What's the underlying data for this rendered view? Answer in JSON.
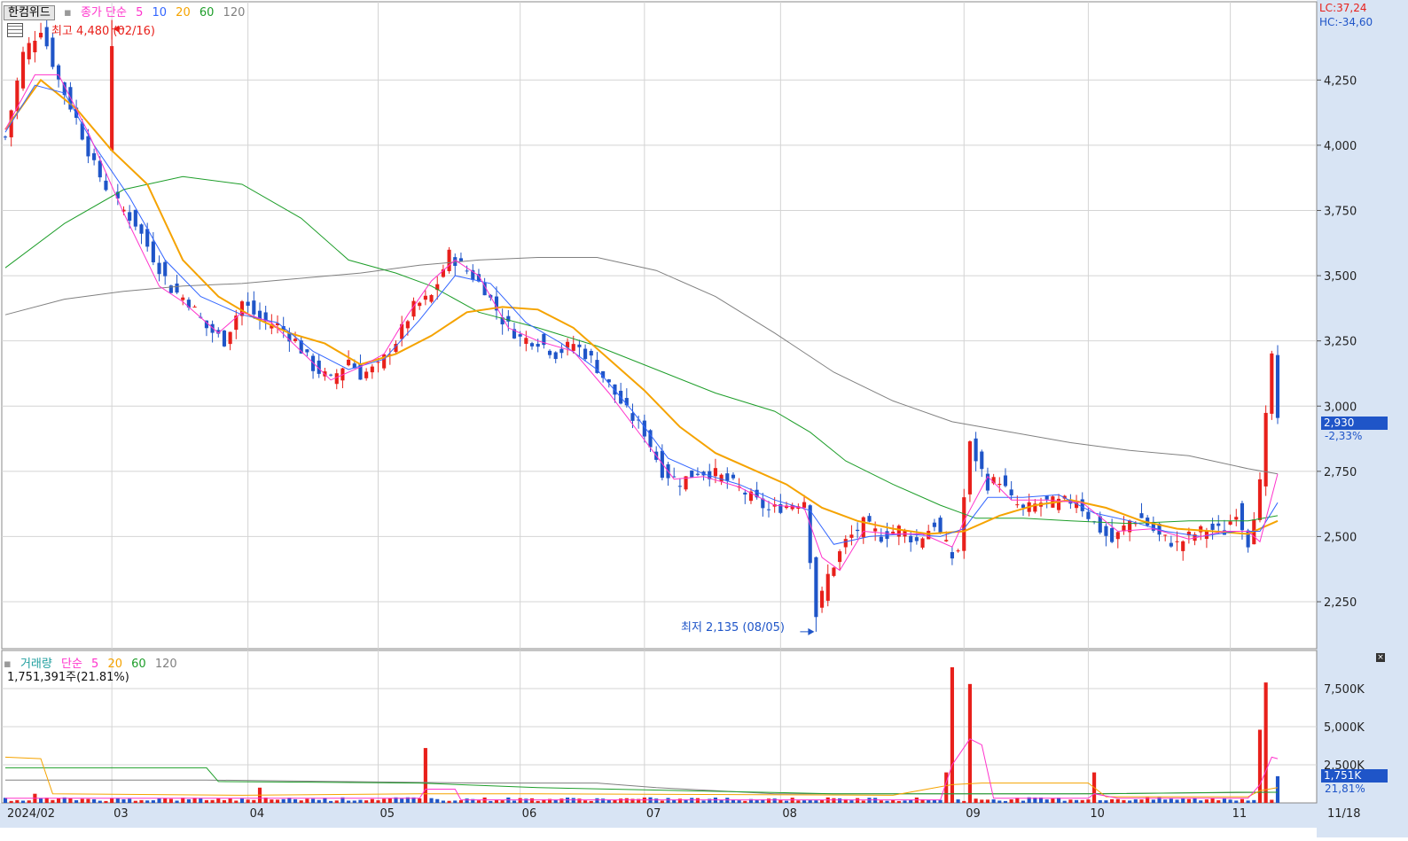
{
  "header": {
    "stock_name": "한컴위드",
    "price_legend": {
      "label": "종가 단순",
      "ma": [
        "5",
        "10",
        "20",
        "60",
        "120"
      ]
    },
    "volume_legend": {
      "label": "거래량",
      "sub": "단순",
      "ma": [
        "5",
        "20",
        "60",
        "120"
      ]
    },
    "volume_current": "1,751,391주(21.81%)",
    "lc": "LC:37,24",
    "hc": "HC:-34,60"
  },
  "annotations": {
    "high": "최고 4,480 (02/16)",
    "low": "최저 2,135 (08/05)"
  },
  "current": {
    "price_tag": "2,930",
    "change": "-2,33%",
    "volume_tag": "1,751K",
    "volume_pct": "21,81%"
  },
  "colors": {
    "up": "#e8201b",
    "down": "#1f55c8",
    "ma5": "#ff33cc",
    "ma10": "#3366ff",
    "ma20": "#f5a300",
    "ma60": "#1e9e2a",
    "ma120": "#808080",
    "axis_bg": "#d8e4f4",
    "tag_bg": "#1f55c8"
  },
  "chart_data": [
    {
      "type": "candlestick",
      "title": "",
      "y_axis_ticks": [
        "4,250",
        "4,000",
        "3,750",
        "3,500",
        "3,250",
        "3,000",
        "2,750",
        "2,500",
        "2,250"
      ],
      "ylim": [
        2070,
        4550
      ],
      "x_axis_labels": [
        "2024/02",
        "03",
        "04",
        "05",
        "06",
        "07",
        "08",
        "09",
        "10",
        "11",
        "11/18"
      ],
      "series_names": [
        "5",
        "10",
        "20",
        "60",
        "120"
      ],
      "anchors": [
        [
          0,
          4030
        ],
        [
          3,
          4350
        ],
        [
          6,
          4450
        ],
        [
          9,
          4250
        ],
        [
          12,
          4100
        ],
        [
          15,
          3920
        ],
        [
          18,
          3800
        ],
        [
          22,
          3700
        ],
        [
          25,
          3570
        ],
        [
          28,
          3450
        ],
        [
          31,
          3400
        ],
        [
          34,
          3300
        ],
        [
          37,
          3250
        ],
        [
          40,
          3400
        ],
        [
          43,
          3330
        ],
        [
          46,
          3310
        ],
        [
          49,
          3250
        ],
        [
          52,
          3150
        ],
        [
          55,
          3100
        ],
        [
          58,
          3180
        ],
        [
          60,
          3120
        ],
        [
          63,
          3150
        ],
        [
          66,
          3250
        ],
        [
          69,
          3380
        ],
        [
          72,
          3420
        ],
        [
          75,
          3580
        ],
        [
          78,
          3520
        ],
        [
          81,
          3450
        ],
        [
          84,
          3330
        ],
        [
          87,
          3260
        ],
        [
          90,
          3250
        ],
        [
          93,
          3200
        ],
        [
          96,
          3240
        ],
        [
          99,
          3180
        ],
        [
          102,
          3080
        ],
        [
          105,
          2980
        ],
        [
          108,
          2900
        ],
        [
          111,
          2750
        ],
        [
          114,
          2710
        ],
        [
          117,
          2750
        ],
        [
          120,
          2740
        ],
        [
          123,
          2700
        ],
        [
          126,
          2650
        ],
        [
          129,
          2600
        ],
        [
          132,
          2620
        ],
        [
          135,
          2640
        ],
        [
          137,
          2200
        ],
        [
          139,
          2350
        ],
        [
          142,
          2480
        ],
        [
          145,
          2550
        ],
        [
          148,
          2500
        ],
        [
          151,
          2530
        ],
        [
          154,
          2480
        ],
        [
          157,
          2550
        ],
        [
          160,
          2420
        ],
        [
          161,
          2450
        ],
        [
          163,
          2850
        ],
        [
          166,
          2700
        ],
        [
          168,
          2720
        ],
        [
          170,
          2640
        ],
        [
          172,
          2600
        ],
        [
          175,
          2630
        ],
        [
          178,
          2630
        ],
        [
          181,
          2640
        ],
        [
          184,
          2550
        ],
        [
          187,
          2480
        ],
        [
          190,
          2560
        ],
        [
          192,
          2570
        ],
        [
          195,
          2500
        ],
        [
          198,
          2470
        ],
        [
          200,
          2500
        ],
        [
          203,
          2530
        ],
        [
          206,
          2520
        ],
        [
          208,
          2600
        ],
        [
          210,
          2480
        ],
        [
          212,
          2700
        ],
        [
          214,
          3200
        ],
        [
          215,
          2930
        ]
      ],
      "total_bars": 216,
      "special_bars": {
        "18": [
          3980,
          4480,
          3990,
          4380
        ]
      },
      "special_lows": {
        "137": 2135
      },
      "ma_paths": {
        "5": [
          [
            0,
            4060
          ],
          [
            5,
            4270
          ],
          [
            9,
            4270
          ],
          [
            14,
            4050
          ],
          [
            20,
            3740
          ],
          [
            26,
            3460
          ],
          [
            30,
            3400
          ],
          [
            36,
            3280
          ],
          [
            40,
            3360
          ],
          [
            45,
            3320
          ],
          [
            50,
            3210
          ],
          [
            55,
            3100
          ],
          [
            60,
            3150
          ],
          [
            64,
            3200
          ],
          [
            68,
            3350
          ],
          [
            72,
            3480
          ],
          [
            76,
            3560
          ],
          [
            80,
            3500
          ],
          [
            85,
            3300
          ],
          [
            90,
            3250
          ],
          [
            96,
            3210
          ],
          [
            102,
            3050
          ],
          [
            108,
            2870
          ],
          [
            113,
            2720
          ],
          [
            118,
            2730
          ],
          [
            124,
            2690
          ],
          [
            130,
            2620
          ],
          [
            135,
            2610
          ],
          [
            138,
            2420
          ],
          [
            141,
            2370
          ],
          [
            145,
            2520
          ],
          [
            150,
            2510
          ],
          [
            155,
            2510
          ],
          [
            160,
            2460
          ],
          [
            162,
            2560
          ],
          [
            166,
            2730
          ],
          [
            170,
            2640
          ],
          [
            176,
            2640
          ],
          [
            182,
            2630
          ],
          [
            188,
            2520
          ],
          [
            194,
            2530
          ],
          [
            200,
            2490
          ],
          [
            206,
            2520
          ],
          [
            210,
            2520
          ],
          [
            212,
            2480
          ],
          [
            215,
            2740
          ]
        ],
        "10": [
          [
            0,
            4050
          ],
          [
            5,
            4230
          ],
          [
            10,
            4200
          ],
          [
            15,
            4000
          ],
          [
            21,
            3800
          ],
          [
            27,
            3560
          ],
          [
            33,
            3420
          ],
          [
            40,
            3350
          ],
          [
            46,
            3320
          ],
          [
            52,
            3210
          ],
          [
            58,
            3140
          ],
          [
            64,
            3180
          ],
          [
            70,
            3330
          ],
          [
            76,
            3500
          ],
          [
            82,
            3470
          ],
          [
            88,
            3320
          ],
          [
            94,
            3240
          ],
          [
            100,
            3140
          ],
          [
            106,
            2980
          ],
          [
            112,
            2800
          ],
          [
            118,
            2740
          ],
          [
            124,
            2700
          ],
          [
            130,
            2640
          ],
          [
            136,
            2600
          ],
          [
            140,
            2470
          ],
          [
            146,
            2500
          ],
          [
            152,
            2510
          ],
          [
            158,
            2500
          ],
          [
            162,
            2530
          ],
          [
            166,
            2650
          ],
          [
            172,
            2650
          ],
          [
            178,
            2660
          ],
          [
            184,
            2590
          ],
          [
            190,
            2560
          ],
          [
            196,
            2520
          ],
          [
            202,
            2500
          ],
          [
            208,
            2520
          ],
          [
            212,
            2520
          ],
          [
            215,
            2630
          ]
        ],
        "20": [
          [
            0,
            4060
          ],
          [
            6,
            4250
          ],
          [
            12,
            4140
          ],
          [
            18,
            3980
          ],
          [
            24,
            3850
          ],
          [
            30,
            3560
          ],
          [
            36,
            3420
          ],
          [
            42,
            3340
          ],
          [
            48,
            3280
          ],
          [
            54,
            3240
          ],
          [
            60,
            3160
          ],
          [
            66,
            3200
          ],
          [
            72,
            3270
          ],
          [
            78,
            3360
          ],
          [
            84,
            3380
          ],
          [
            90,
            3370
          ],
          [
            96,
            3300
          ],
          [
            102,
            3180
          ],
          [
            108,
            3060
          ],
          [
            114,
            2920
          ],
          [
            120,
            2820
          ],
          [
            126,
            2760
          ],
          [
            132,
            2700
          ],
          [
            138,
            2610
          ],
          [
            144,
            2560
          ],
          [
            150,
            2530
          ],
          [
            156,
            2510
          ],
          [
            162,
            2520
          ],
          [
            168,
            2580
          ],
          [
            174,
            2620
          ],
          [
            180,
            2640
          ],
          [
            186,
            2610
          ],
          [
            192,
            2560
          ],
          [
            198,
            2530
          ],
          [
            204,
            2520
          ],
          [
            210,
            2510
          ],
          [
            215,
            2560
          ]
        ],
        "60": [
          [
            0,
            3530
          ],
          [
            10,
            3700
          ],
          [
            20,
            3830
          ],
          [
            30,
            3880
          ],
          [
            40,
            3850
          ],
          [
            50,
            3720
          ],
          [
            58,
            3560
          ],
          [
            66,
            3510
          ],
          [
            72,
            3460
          ],
          [
            80,
            3360
          ],
          [
            90,
            3300
          ],
          [
            100,
            3230
          ],
          [
            110,
            3140
          ],
          [
            120,
            3050
          ],
          [
            130,
            2980
          ],
          [
            136,
            2900
          ],
          [
            142,
            2790
          ],
          [
            150,
            2700
          ],
          [
            158,
            2620
          ],
          [
            164,
            2570
          ],
          [
            172,
            2570
          ],
          [
            180,
            2560
          ],
          [
            190,
            2550
          ],
          [
            200,
            2560
          ],
          [
            210,
            2560
          ],
          [
            215,
            2580
          ]
        ],
        "120": [
          [
            0,
            3350
          ],
          [
            10,
            3410
          ],
          [
            20,
            3440
          ],
          [
            30,
            3460
          ],
          [
            40,
            3470
          ],
          [
            50,
            3490
          ],
          [
            60,
            3510
          ],
          [
            70,
            3540
          ],
          [
            80,
            3560
          ],
          [
            90,
            3570
          ],
          [
            100,
            3570
          ],
          [
            110,
            3520
          ],
          [
            120,
            3420
          ],
          [
            130,
            3280
          ],
          [
            140,
            3130
          ],
          [
            150,
            3020
          ],
          [
            160,
            2940
          ],
          [
            170,
            2900
          ],
          [
            180,
            2860
          ],
          [
            190,
            2830
          ],
          [
            200,
            2810
          ],
          [
            210,
            2760
          ],
          [
            215,
            2740
          ]
        ]
      }
    },
    {
      "type": "bar",
      "title": "",
      "y_axis_ticks": [
        "7,500K",
        "5,000K",
        "2,500K"
      ],
      "ylim": [
        0,
        10000
      ],
      "spikes": {
        "5": 600,
        "43": 1000,
        "71": 3600,
        "159": 2000,
        "160": 8900,
        "163": 7800,
        "184": 2000,
        "212": 4800,
        "213": 7900,
        "215": 1751
      },
      "ma_paths": {
        "5": [
          [
            0,
            300
          ],
          [
            70,
            300
          ],
          [
            71,
            900
          ],
          [
            76,
            900
          ],
          [
            77,
            200
          ],
          [
            158,
            200
          ],
          [
            160,
            2500
          ],
          [
            163,
            4200
          ],
          [
            165,
            3800
          ],
          [
            167,
            300
          ],
          [
            183,
            300
          ],
          [
            184,
            600
          ],
          [
            188,
            300
          ],
          [
            210,
            300
          ],
          [
            212,
            1200
          ],
          [
            214,
            3000
          ],
          [
            215,
            2900
          ]
        ],
        "20": [
          [
            0,
            3000
          ],
          [
            6,
            2900
          ],
          [
            8,
            600
          ],
          [
            40,
            500
          ],
          [
            70,
            600
          ],
          [
            90,
            600
          ],
          [
            150,
            500
          ],
          [
            160,
            1200
          ],
          [
            165,
            1300
          ],
          [
            183,
            1300
          ],
          [
            186,
            400
          ],
          [
            210,
            400
          ],
          [
            212,
            800
          ],
          [
            215,
            1000
          ]
        ],
        "60": [
          [
            0,
            2300
          ],
          [
            34,
            2300
          ],
          [
            36,
            1400
          ],
          [
            70,
            1300
          ],
          [
            90,
            1000
          ],
          [
            140,
            600
          ],
          [
            160,
            600
          ],
          [
            186,
            600
          ],
          [
            208,
            700
          ],
          [
            215,
            700
          ]
        ],
        "120": [
          [
            0,
            1500
          ],
          [
            34,
            1500
          ],
          [
            80,
            1300
          ],
          [
            100,
            1300
          ],
          [
            110,
            1000
          ],
          [
            130,
            600
          ],
          [
            180,
            600
          ],
          [
            215,
            700
          ]
        ]
      }
    }
  ]
}
